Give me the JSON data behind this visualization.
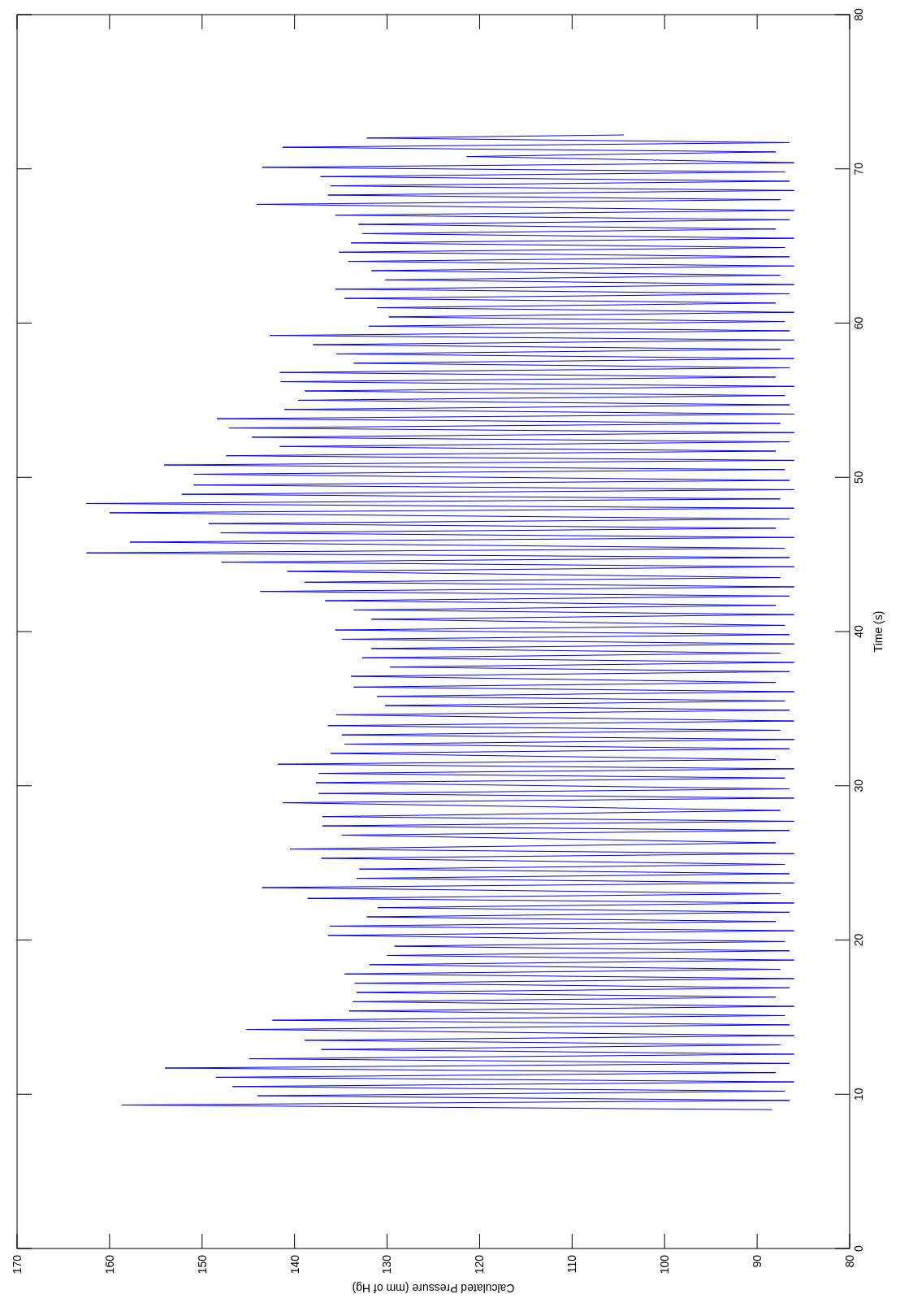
{
  "chart_data": {
    "type": "line",
    "ylabel": "Time (s)",
    "xlabel": "Calculated Pressure (mm of Hg)",
    "ylim": [
      0,
      80
    ],
    "yticks": [
      0,
      10,
      20,
      30,
      40,
      50,
      60,
      70,
      80
    ],
    "xlim": [
      170,
      80
    ],
    "xticks": [
      170,
      160,
      150,
      140,
      130,
      120,
      110,
      100,
      90,
      80
    ],
    "series": [
      {
        "color": "#0000ff",
        "values": [
          9.0,
          9.3,
          9.6,
          9.9,
          10.2,
          10.5,
          10.8,
          11.1,
          11.4,
          11.7,
          12.0,
          12.3,
          12.6,
          12.9,
          13.2,
          13.5,
          13.8,
          14.2,
          14.5,
          14.8,
          15.1,
          15.4,
          15.7,
          16.0,
          16.3,
          16.6,
          16.9,
          17.2,
          17.5,
          17.8,
          18.1,
          18.4,
          18.7,
          19.0,
          19.3,
          19.6,
          19.9,
          20.3,
          20.6,
          20.9,
          21.2,
          21.5,
          21.8,
          22.1,
          22.4,
          22.7,
          23.0,
          23.4,
          23.7,
          24.0,
          24.3,
          24.6,
          24.9,
          25.3,
          25.6,
          25.9,
          26.3,
          26.8,
          27.1,
          27.4,
          27.7,
          28.0,
          28.4,
          28.9,
          29.2,
          29.5,
          29.8,
          30.2,
          30.5,
          30.8,
          31.1,
          31.4,
          31.7,
          32.1,
          32.4,
          32.7,
          33.0,
          33.3,
          33.6,
          33.9,
          34.2,
          34.6,
          34.9,
          35.2,
          35.5,
          35.8,
          36.1,
          36.4,
          36.7,
          37.1,
          37.4,
          37.7,
          38.0,
          38.3,
          38.6,
          38.9,
          39.2,
          39.5,
          39.8,
          40.1,
          40.4,
          40.8,
          41.1,
          41.4,
          41.7,
          42.0,
          42.3,
          42.6,
          42.9,
          43.2,
          43.5,
          43.9,
          44.2,
          44.5,
          44.8,
          45.1,
          45.4,
          45.8,
          46.1,
          46.4,
          46.7,
          47.0,
          47.3,
          47.7,
          48.0,
          48.3,
          48.6,
          48.9,
          49.2,
          49.5,
          49.8,
          50.2,
          50.5,
          50.8,
          51.1,
          51.4,
          51.7,
          52.0,
          52.3,
          52.6,
          52.9,
          53.2,
          53.5,
          53.8,
          54.1,
          54.4,
          54.7,
          55.0,
          55.3,
          55.6,
          55.9,
          56.2,
          56.5,
          56.8,
          57.1,
          57.4,
          57.7,
          58.0,
          58.3,
          58.6,
          58.9,
          59.2,
          59.5,
          59.8,
          60.1,
          60.4,
          60.7,
          61.0,
          61.3,
          61.6,
          61.9,
          62.2,
          62.5,
          62.8,
          63.1,
          63.4,
          63.7,
          64.0,
          64.3,
          64.6,
          64.9,
          65.2,
          65.5,
          65.8,
          66.1,
          66.4,
          66.7,
          67.0,
          67.3,
          67.7,
          68.0,
          68.3,
          68.6,
          68.9,
          69.2,
          69.5,
          69.8,
          70.1,
          70.4,
          70.8,
          71.1,
          71.4,
          71.7,
          72.0,
          72.2
        ],
        "x": [
          88.4,
          158.7,
          86.5,
          144,
          87,
          146.7,
          86,
          148.5,
          88,
          154,
          86.5,
          144.9,
          86,
          137.1,
          87.5,
          138.9,
          86,
          145.2,
          86.5,
          142.4,
          87,
          134.1,
          86,
          133.7,
          88,
          133.3,
          86.5,
          133.5,
          86,
          134.6,
          87.5,
          131.9,
          86,
          130,
          86.5,
          129.2,
          87,
          136.4,
          86,
          136.2,
          88,
          132.2,
          86.5,
          131,
          86,
          138.6,
          87.5,
          143.5,
          86,
          133.3,
          86.5,
          133,
          87,
          137.1,
          86,
          140.5,
          88,
          134.9,
          86.5,
          137,
          86,
          137,
          87.5,
          141.3,
          86,
          137.4,
          86.5,
          137.7,
          87,
          137.4,
          86,
          141.8,
          88,
          136.1,
          86.5,
          134.6,
          86,
          134.9,
          87.5,
          136.4,
          86,
          135.5,
          86.5,
          130.2,
          87,
          131.1,
          86,
          133.6,
          88,
          133.9,
          86.5,
          129.7,
          86,
          132.7,
          87.5,
          131.7,
          86,
          134.9,
          86.5,
          135.6,
          87,
          131.7,
          86,
          133.6,
          88,
          136.7,
          86.5,
          143.7,
          86,
          138.9,
          87.5,
          140.8,
          86,
          147.9,
          86.5,
          162.5,
          87,
          157.8,
          86,
          148,
          88,
          149.3,
          86.5,
          160,
          86,
          162.5,
          87.5,
          152.2,
          86,
          150.9,
          86.5,
          150.9,
          87,
          154.1,
          86,
          147.4,
          88,
          141.6,
          86.5,
          144.6,
          86,
          147.1,
          87.5,
          148.4,
          86,
          141.1,
          86.5,
          139.6,
          87,
          138.9,
          86,
          141.5,
          88,
          141.6,
          86.5,
          133.6,
          86,
          135.5,
          87.5,
          138,
          86,
          142.7,
          86.5,
          132,
          87,
          129.8,
          86,
          131.1,
          88,
          134.6,
          86.5,
          135.6,
          86,
          130.2,
          87.5,
          131.7,
          86,
          134.2,
          86.5,
          135.2,
          87,
          133.9,
          86,
          132.7,
          88,
          133.1,
          86.5,
          135.6,
          86,
          144.1,
          87.5,
          136.4,
          86,
          136.1,
          86.5,
          137.2,
          87,
          143.5,
          86,
          121.4,
          88,
          141.3,
          86.5,
          132.2,
          104.4
        ]
      }
    ]
  }
}
